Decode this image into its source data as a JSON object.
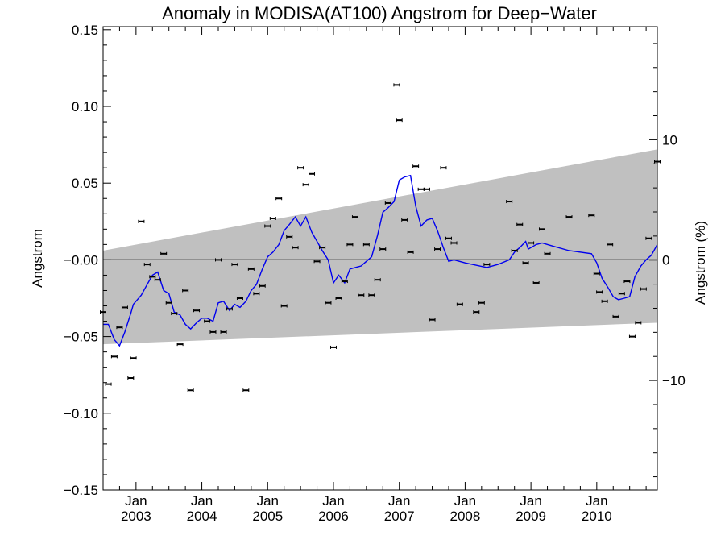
{
  "chart_data": {
    "type": "scatter",
    "title": "Anomaly in MODISA(AT100) Angstrom for Deep−Water",
    "ylabel": "Angstrom",
    "ylabel_right": "Angstrom (%)",
    "xlabel": "",
    "xlim": [
      2002.5,
      2010.92
    ],
    "ylim": [
      -0.15,
      0.152
    ],
    "ylim_right_percent": [
      -19.1,
      19.4
    ],
    "grid": false,
    "legend": "none",
    "colors": {
      "band": "#c0c0c0",
      "line": "#0000ee",
      "points": "#000000",
      "zero_line": "#000000"
    },
    "x_ticks": [
      {
        "x": 2003.0,
        "top": "Jan",
        "bottom": "2003"
      },
      {
        "x": 2004.0,
        "top": "Jan",
        "bottom": "2004"
      },
      {
        "x": 2005.0,
        "top": "Jan",
        "bottom": "2005"
      },
      {
        "x": 2006.0,
        "top": "Jan",
        "bottom": "2006"
      },
      {
        "x": 2007.0,
        "top": "Jan",
        "bottom": "2007"
      },
      {
        "x": 2008.0,
        "top": "Jan",
        "bottom": "2008"
      },
      {
        "x": 2009.0,
        "top": "Jan",
        "bottom": "2009"
      },
      {
        "x": 2010.0,
        "top": "Jan",
        "bottom": "2010"
      }
    ],
    "y_ticks": [
      {
        "v": 0.15,
        "label": "0.15"
      },
      {
        "v": 0.1,
        "label": "0.10"
      },
      {
        "v": 0.05,
        "label": "0.05"
      },
      {
        "v": 0.0,
        "label": "−0.00"
      },
      {
        "v": -0.05,
        "label": "−0.05"
      },
      {
        "v": -0.1,
        "label": "−0.10"
      },
      {
        "v": -0.15,
        "label": "−0.15"
      }
    ],
    "y_right_ticks": [
      {
        "v": 10,
        "label": "10"
      },
      {
        "v": 0,
        "label": "0"
      },
      {
        "v": -10,
        "label": "−10"
      }
    ],
    "band": {
      "x": [
        2002.5,
        2010.92
      ],
      "upper": [
        0.006,
        0.072
      ],
      "lower": [
        -0.055,
        -0.041
      ]
    },
    "points": [
      [
        2002.5,
        -0.034
      ],
      [
        2002.58,
        -0.081
      ],
      [
        2002.67,
        -0.063
      ],
      [
        2002.75,
        -0.044
      ],
      [
        2002.83,
        -0.031
      ],
      [
        2002.92,
        -0.077
      ],
      [
        2002.96,
        -0.064
      ],
      [
        2003.08,
        0.025
      ],
      [
        2003.17,
        -0.003
      ],
      [
        2003.25,
        -0.011
      ],
      [
        2003.33,
        -0.013
      ],
      [
        2003.42,
        0.004
      ],
      [
        2003.5,
        -0.028
      ],
      [
        2003.58,
        -0.035
      ],
      [
        2003.67,
        -0.055
      ],
      [
        2003.75,
        -0.02
      ],
      [
        2003.83,
        -0.085
      ],
      [
        2003.92,
        -0.033
      ],
      [
        2004.08,
        -0.04
      ],
      [
        2004.17,
        -0.047
      ],
      [
        2004.25,
        0.0
      ],
      [
        2004.33,
        -0.047
      ],
      [
        2004.42,
        -0.032
      ],
      [
        2004.5,
        -0.003
      ],
      [
        2004.58,
        -0.025
      ],
      [
        2004.67,
        -0.085
      ],
      [
        2004.75,
        -0.006
      ],
      [
        2004.83,
        -0.022
      ],
      [
        2004.92,
        -0.017
      ],
      [
        2005.0,
        0.022
      ],
      [
        2005.08,
        0.027
      ],
      [
        2005.17,
        0.04
      ],
      [
        2005.25,
        -0.03
      ],
      [
        2005.33,
        0.015
      ],
      [
        2005.42,
        0.008
      ],
      [
        2005.5,
        0.06
      ],
      [
        2005.58,
        0.049
      ],
      [
        2005.67,
        0.056
      ],
      [
        2005.75,
        -0.001
      ],
      [
        2005.83,
        0.008
      ],
      [
        2005.92,
        -0.028
      ],
      [
        2006.0,
        -0.057
      ],
      [
        2006.08,
        -0.025
      ],
      [
        2006.17,
        -0.014
      ],
      [
        2006.25,
        0.01
      ],
      [
        2006.33,
        0.028
      ],
      [
        2006.42,
        -0.023
      ],
      [
        2006.5,
        0.01
      ],
      [
        2006.58,
        -0.023
      ],
      [
        2006.67,
        -0.013
      ],
      [
        2006.75,
        0.007
      ],
      [
        2006.83,
        0.037
      ],
      [
        2006.96,
        0.114
      ],
      [
        2007.0,
        0.091
      ],
      [
        2007.08,
        0.026
      ],
      [
        2007.17,
        0.005
      ],
      [
        2007.25,
        0.061
      ],
      [
        2007.33,
        0.046
      ],
      [
        2007.42,
        0.046
      ],
      [
        2007.5,
        -0.039
      ],
      [
        2007.58,
        0.007
      ],
      [
        2007.67,
        0.06
      ],
      [
        2007.75,
        0.014
      ],
      [
        2007.83,
        0.011
      ],
      [
        2007.92,
        -0.029
      ],
      [
        2008.17,
        -0.034
      ],
      [
        2008.25,
        -0.028
      ],
      [
        2008.33,
        -0.003
      ],
      [
        2008.67,
        0.038
      ],
      [
        2008.75,
        0.006
      ],
      [
        2008.83,
        0.023
      ],
      [
        2008.92,
        -0.002
      ],
      [
        2009.0,
        0.011
      ],
      [
        2009.08,
        -0.015
      ],
      [
        2009.17,
        0.02
      ],
      [
        2009.25,
        0.004
      ],
      [
        2009.58,
        0.028
      ],
      [
        2009.92,
        0.029
      ],
      [
        2010.0,
        -0.009
      ],
      [
        2010.04,
        -0.021
      ],
      [
        2010.12,
        -0.027
      ],
      [
        2010.2,
        0.01
      ],
      [
        2010.29,
        -0.037
      ],
      [
        2010.38,
        -0.022
      ],
      [
        2010.46,
        -0.014
      ],
      [
        2010.54,
        -0.05
      ],
      [
        2010.63,
        -0.041
      ],
      [
        2010.71,
        -0.019
      ],
      [
        2010.79,
        0.014
      ],
      [
        2010.92,
        0.064
      ]
    ],
    "line": [
      [
        2002.5,
        -0.042
      ],
      [
        2002.58,
        -0.042
      ],
      [
        2002.67,
        -0.052
      ],
      [
        2002.75,
        -0.056
      ],
      [
        2002.83,
        -0.047
      ],
      [
        2002.92,
        -0.035
      ],
      [
        2002.96,
        -0.029
      ],
      [
        2003.08,
        -0.023
      ],
      [
        2003.17,
        -0.016
      ],
      [
        2003.25,
        -0.01
      ],
      [
        2003.33,
        -0.008
      ],
      [
        2003.42,
        -0.02
      ],
      [
        2003.5,
        -0.022
      ],
      [
        2003.58,
        -0.034
      ],
      [
        2003.67,
        -0.036
      ],
      [
        2003.75,
        -0.042
      ],
      [
        2003.83,
        -0.045
      ],
      [
        2003.92,
        -0.041
      ],
      [
        2004.0,
        -0.038
      ],
      [
        2004.08,
        -0.038
      ],
      [
        2004.17,
        -0.04
      ],
      [
        2004.25,
        -0.028
      ],
      [
        2004.33,
        -0.027
      ],
      [
        2004.42,
        -0.033
      ],
      [
        2004.5,
        -0.029
      ],
      [
        2004.58,
        -0.031
      ],
      [
        2004.67,
        -0.027
      ],
      [
        2004.75,
        -0.02
      ],
      [
        2004.83,
        -0.016
      ],
      [
        2004.92,
        -0.006
      ],
      [
        2005.0,
        0.002
      ],
      [
        2005.08,
        0.005
      ],
      [
        2005.17,
        0.01
      ],
      [
        2005.25,
        0.019
      ],
      [
        2005.33,
        0.023
      ],
      [
        2005.42,
        0.028
      ],
      [
        2005.5,
        0.022
      ],
      [
        2005.58,
        0.028
      ],
      [
        2005.67,
        0.018
      ],
      [
        2005.75,
        0.012
      ],
      [
        2005.83,
        0.006
      ],
      [
        2005.92,
        0.0
      ],
      [
        2006.0,
        -0.015
      ],
      [
        2006.08,
        -0.01
      ],
      [
        2006.17,
        -0.015
      ],
      [
        2006.25,
        -0.006
      ],
      [
        2006.33,
        -0.005
      ],
      [
        2006.42,
        -0.004
      ],
      [
        2006.5,
        -0.001
      ],
      [
        2006.58,
        0.002
      ],
      [
        2006.67,
        0.016
      ],
      [
        2006.75,
        0.031
      ],
      [
        2006.83,
        0.034
      ],
      [
        2006.92,
        0.038
      ],
      [
        2007.0,
        0.052
      ],
      [
        2007.08,
        0.054
      ],
      [
        2007.17,
        0.055
      ],
      [
        2007.25,
        0.035
      ],
      [
        2007.33,
        0.022
      ],
      [
        2007.42,
        0.026
      ],
      [
        2007.5,
        0.027
      ],
      [
        2007.58,
        0.019
      ],
      [
        2007.67,
        0.008
      ],
      [
        2007.75,
        -0.001
      ],
      [
        2007.83,
        0.0
      ],
      [
        2008.0,
        -0.002
      ],
      [
        2008.33,
        -0.005
      ],
      [
        2008.5,
        -0.003
      ],
      [
        2008.67,
        0.0
      ],
      [
        2008.75,
        0.005
      ],
      [
        2008.83,
        0.008
      ],
      [
        2008.92,
        0.012
      ],
      [
        2008.96,
        0.007
      ],
      [
        2009.08,
        0.01
      ],
      [
        2009.17,
        0.011
      ],
      [
        2009.33,
        0.009
      ],
      [
        2009.58,
        0.006
      ],
      [
        2009.92,
        0.004
      ],
      [
        2010.0,
        -0.002
      ],
      [
        2010.08,
        -0.012
      ],
      [
        2010.17,
        -0.018
      ],
      [
        2010.25,
        -0.024
      ],
      [
        2010.33,
        -0.026
      ],
      [
        2010.42,
        -0.025
      ],
      [
        2010.5,
        -0.024
      ],
      [
        2010.58,
        -0.011
      ],
      [
        2010.67,
        -0.004
      ],
      [
        2010.75,
        0.0
      ],
      [
        2010.83,
        0.003
      ],
      [
        2010.92,
        0.01
      ]
    ]
  }
}
